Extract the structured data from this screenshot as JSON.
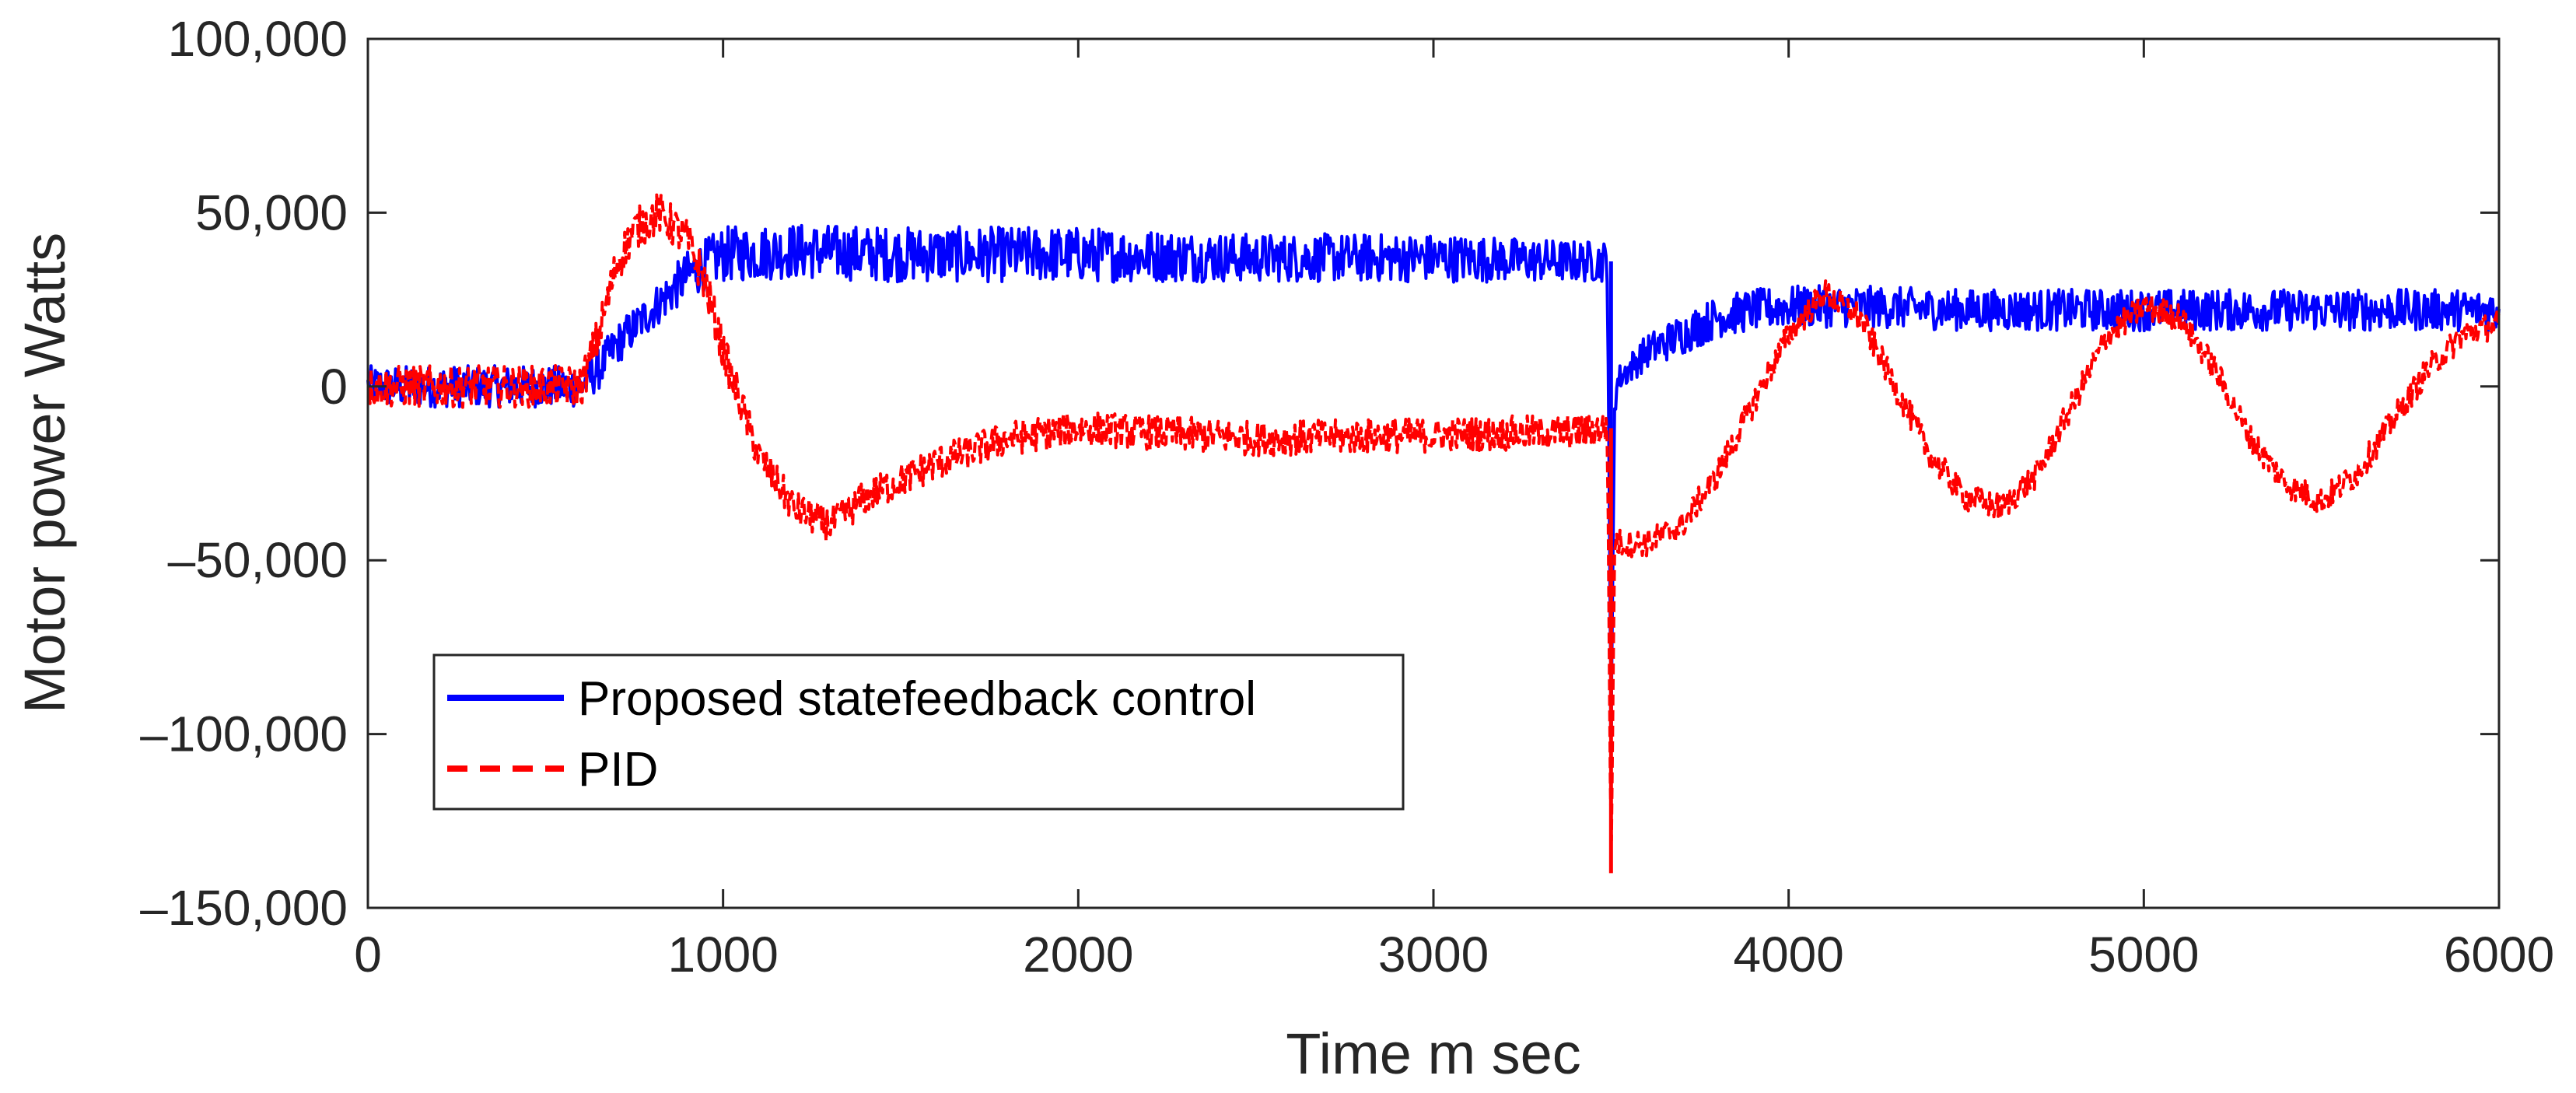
{
  "chart_data": {
    "type": "line",
    "title": "",
    "xlabel": "Time m sec",
    "ylabel": "Motor power Watts",
    "xlim": [
      0,
      6000
    ],
    "ylim": [
      -150000,
      100000
    ],
    "x_ticks": [
      0,
      1000,
      2000,
      3000,
      4000,
      5000,
      6000
    ],
    "x_tick_labels": [
      "0",
      "1000",
      "2000",
      "3000",
      "4000",
      "5000",
      "6000"
    ],
    "y_ticks": [
      -150000,
      -100000,
      -50000,
      0,
      50000,
      100000
    ],
    "y_tick_labels": [
      "–150,000",
      "–100,000",
      "–50,000",
      "0",
      "50,000",
      "100,000"
    ],
    "grid": false,
    "legend_position": "lower-left",
    "series": [
      {
        "name": "Proposed statefeedback control",
        "color": "#0000ff",
        "style": "solid",
        "x": [
          0,
          600,
          650,
          700,
          800,
          900,
          1000,
          1200,
          1500,
          2000,
          2500,
          3000,
          3400,
          3490,
          3500,
          3510,
          3520,
          3600,
          3700,
          3800,
          3900,
          4000,
          4200,
          4500,
          5000,
          5500,
          6000
        ],
        "values": [
          0,
          0,
          5000,
          12000,
          22000,
          32000,
          38000,
          39000,
          38000,
          38000,
          37000,
          37000,
          36000,
          36000,
          -100000,
          -5000,
          2000,
          10000,
          15000,
          20000,
          22000,
          23000,
          23000,
          22000,
          22000,
          22000,
          22000
        ],
        "noise": [
          6000,
          6000,
          6000,
          6000,
          6000,
          7000,
          8000,
          8000,
          8000,
          8000,
          7000,
          7000,
          6000,
          6000,
          0,
          4000,
          4000,
          5000,
          6000,
          6000,
          6000,
          6000,
          6000,
          6000,
          6000,
          6000,
          6000
        ]
      },
      {
        "name": "PID",
        "color": "#ff0000",
        "style": "dashed",
        "x": [
          0,
          600,
          650,
          700,
          750,
          820,
          900,
          950,
          1000,
          1100,
          1200,
          1300,
          1400,
          1600,
          1800,
          2000,
          2500,
          3000,
          3400,
          3490,
          3500,
          3510,
          3520,
          3600,
          3700,
          3800,
          3900,
          4000,
          4100,
          4200,
          4300,
          4400,
          4500,
          4600,
          4700,
          4800,
          4900,
          5000,
          5100,
          5200,
          5300,
          5400,
          5500,
          5600,
          5700,
          5800,
          5900,
          6000
        ],
        "values": [
          0,
          0,
          15000,
          35000,
          45000,
          50000,
          42000,
          30000,
          10000,
          -20000,
          -35000,
          -40000,
          -32000,
          -22000,
          -15000,
          -12000,
          -15000,
          -14000,
          -13000,
          -12000,
          -140000,
          -45000,
          -45000,
          -45000,
          -40000,
          -25000,
          -5000,
          15000,
          27000,
          20000,
          0,
          -20000,
          -32000,
          -35000,
          -25000,
          -5000,
          15000,
          23000,
          20000,
          5000,
          -15000,
          -28000,
          -33000,
          -25000,
          -10000,
          5000,
          15000,
          18000
        ],
        "noise": [
          6000,
          6000,
          6000,
          6000,
          6000,
          6000,
          6000,
          6000,
          6000,
          5000,
          5000,
          5000,
          5000,
          5000,
          5000,
          5000,
          5000,
          5000,
          5000,
          5000,
          0,
          4000,
          4000,
          4000,
          4000,
          4000,
          4000,
          4000,
          4000,
          4000,
          4000,
          4000,
          4000,
          4000,
          4000,
          4000,
          4000,
          4000,
          4000,
          4000,
          4000,
          4000,
          4000,
          4000,
          4000,
          4000,
          4000,
          4000
        ]
      }
    ]
  }
}
